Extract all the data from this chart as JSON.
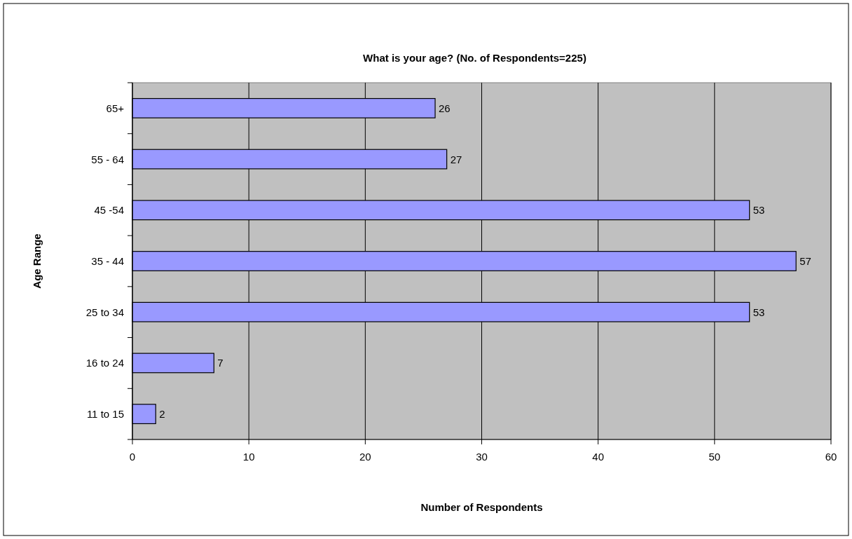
{
  "chart_data": {
    "type": "bar",
    "orientation": "horizontal",
    "title": "What is your age? (No. of Respondents=225)",
    "xlabel": "Number of Respondents",
    "ylabel": "Age Range",
    "categories": [
      "65+",
      "55 - 64",
      "45 -54",
      "35 - 44",
      "25 to 34",
      "16 to 24",
      "11 to 15"
    ],
    "values": [
      26,
      27,
      53,
      57,
      53,
      7,
      2
    ],
    "color": "#9999ff",
    "xlim": [
      0,
      60
    ],
    "xticks": [
      0,
      10,
      20,
      30,
      40,
      50,
      60
    ],
    "grid": "x",
    "data_labels": true
  }
}
